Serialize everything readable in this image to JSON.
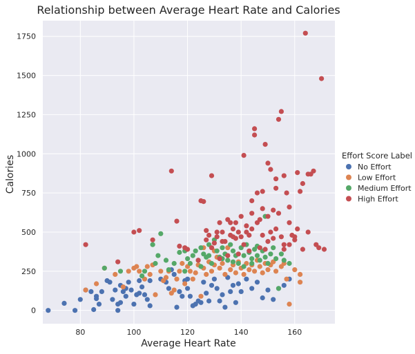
{
  "chart_data": {
    "type": "scatter",
    "title": "Relationship between Average Heart Rate and Calories",
    "xlabel": "Average Heart Rate",
    "ylabel": "Calories",
    "xlim": [
      66,
      175
    ],
    "ylim": [
      -85,
      1850
    ],
    "xticks": [
      80,
      100,
      120,
      140,
      160
    ],
    "yticks": [
      0,
      250,
      500,
      750,
      1000,
      1250,
      1500,
      1750
    ],
    "grid": true,
    "background": "#EAEAF2",
    "legend": {
      "title": "Effort Score Label",
      "position": "right"
    },
    "series": [
      {
        "name": "No Effort",
        "color": "#4C72B0",
        "points": [
          [
            68,
            0
          ],
          [
            74,
            45
          ],
          [
            78,
            0
          ],
          [
            80,
            70
          ],
          [
            82,
            130
          ],
          [
            84,
            120
          ],
          [
            85,
            5
          ],
          [
            86,
            90
          ],
          [
            86,
            75
          ],
          [
            87,
            40
          ],
          [
            88,
            120
          ],
          [
            90,
            190
          ],
          [
            91,
            180
          ],
          [
            92,
            70
          ],
          [
            93,
            130
          ],
          [
            94,
            40
          ],
          [
            94,
            0
          ],
          [
            95,
            50
          ],
          [
            95,
            160
          ],
          [
            96,
            120
          ],
          [
            97,
            140
          ],
          [
            97,
            90
          ],
          [
            98,
            180
          ],
          [
            99,
            130
          ],
          [
            100,
            40
          ],
          [
            101,
            100
          ],
          [
            102,
            190
          ],
          [
            102,
            110
          ],
          [
            103,
            150
          ],
          [
            104,
            100
          ],
          [
            105,
            70
          ],
          [
            106,
            190
          ],
          [
            106,
            30
          ],
          [
            110,
            200
          ],
          [
            112,
            180
          ],
          [
            113,
            140
          ],
          [
            114,
            260
          ],
          [
            115,
            230
          ],
          [
            116,
            20
          ],
          [
            117,
            120
          ],
          [
            118,
            90
          ],
          [
            119,
            190
          ],
          [
            120,
            200
          ],
          [
            120,
            140
          ],
          [
            121,
            90
          ],
          [
            122,
            30
          ],
          [
            123,
            40
          ],
          [
            124,
            60
          ],
          [
            125,
            50
          ],
          [
            126,
            180
          ],
          [
            127,
            110
          ],
          [
            128,
            60
          ],
          [
            129,
            160
          ],
          [
            130,
            200
          ],
          [
            131,
            140
          ],
          [
            132,
            60
          ],
          [
            133,
            100
          ],
          [
            134,
            20
          ],
          [
            135,
            210
          ],
          [
            136,
            120
          ],
          [
            137,
            160
          ],
          [
            138,
            50
          ],
          [
            139,
            170
          ],
          [
            140,
            120
          ],
          [
            142,
            200
          ],
          [
            144,
            140
          ],
          [
            146,
            180
          ],
          [
            148,
            80
          ],
          [
            150,
            130
          ],
          [
            152,
            70
          ],
          [
            154,
            140
          ],
          [
            156,
            160
          ],
          [
            158,
            200
          ]
        ]
      },
      {
        "name": "Low Effort",
        "color": "#DD8452",
        "points": [
          [
            82,
            130
          ],
          [
            86,
            170
          ],
          [
            89,
            270
          ],
          [
            93,
            230
          ],
          [
            96,
            150
          ],
          [
            98,
            250
          ],
          [
            100,
            270
          ],
          [
            101,
            280
          ],
          [
            102,
            250
          ],
          [
            104,
            200
          ],
          [
            105,
            280
          ],
          [
            106,
            230
          ],
          [
            107,
            290
          ],
          [
            108,
            100
          ],
          [
            110,
            250
          ],
          [
            111,
            190
          ],
          [
            112,
            210
          ],
          [
            113,
            250
          ],
          [
            114,
            110
          ],
          [
            115,
            130
          ],
          [
            116,
            200
          ],
          [
            117,
            250
          ],
          [
            118,
            300
          ],
          [
            119,
            170
          ],
          [
            120,
            280
          ],
          [
            121,
            250
          ],
          [
            122,
            200
          ],
          [
            123,
            240
          ],
          [
            124,
            290
          ],
          [
            125,
            90
          ],
          [
            126,
            270
          ],
          [
            127,
            230
          ],
          [
            128,
            310
          ],
          [
            129,
            250
          ],
          [
            130,
            290
          ],
          [
            131,
            340
          ],
          [
            132,
            270
          ],
          [
            133,
            300
          ],
          [
            134,
            230
          ],
          [
            135,
            320
          ],
          [
            136,
            260
          ],
          [
            137,
            290
          ],
          [
            138,
            240
          ],
          [
            139,
            310
          ],
          [
            140,
            270
          ],
          [
            141,
            230
          ],
          [
            142,
            300
          ],
          [
            143,
            260
          ],
          [
            144,
            290
          ],
          [
            145,
            250
          ],
          [
            146,
            320
          ],
          [
            147,
            280
          ],
          [
            148,
            240
          ],
          [
            149,
            300
          ],
          [
            150,
            260
          ],
          [
            151,
            290
          ],
          [
            152,
            310
          ],
          [
            153,
            250
          ],
          [
            155,
            280
          ],
          [
            156,
            300
          ],
          [
            157,
            200
          ],
          [
            158,
            40
          ],
          [
            160,
            260
          ],
          [
            162,
            230
          ],
          [
            162,
            180
          ],
          [
            126,
            400
          ],
          [
            130,
            380
          ],
          [
            135,
            400
          ]
        ]
      },
      {
        "name": "Medium Effort",
        "color": "#55A868",
        "points": [
          [
            89,
            270
          ],
          [
            95,
            250
          ],
          [
            103,
            220
          ],
          [
            104,
            250
          ],
          [
            107,
            420
          ],
          [
            108,
            300
          ],
          [
            109,
            350
          ],
          [
            110,
            490
          ],
          [
            112,
            320
          ],
          [
            113,
            260
          ],
          [
            115,
            300
          ],
          [
            117,
            370
          ],
          [
            119,
            250
          ],
          [
            120,
            330
          ],
          [
            121,
            300
          ],
          [
            122,
            350
          ],
          [
            123,
            380
          ],
          [
            124,
            320
          ],
          [
            125,
            400
          ],
          [
            126,
            360
          ],
          [
            127,
            340
          ],
          [
            128,
            420
          ],
          [
            129,
            300
          ],
          [
            130,
            450
          ],
          [
            131,
            380
          ],
          [
            132,
            340
          ],
          [
            133,
            400
          ],
          [
            134,
            360
          ],
          [
            135,
            320
          ],
          [
            136,
            420
          ],
          [
            137,
            380
          ],
          [
            138,
            350
          ],
          [
            139,
            300
          ],
          [
            140,
            400
          ],
          [
            141,
            350
          ],
          [
            142,
            420
          ],
          [
            143,
            370
          ],
          [
            144,
            330
          ],
          [
            145,
            390
          ],
          [
            146,
            350
          ],
          [
            147,
            320
          ],
          [
            148,
            380
          ],
          [
            149,
            340
          ],
          [
            150,
            300
          ],
          [
            151,
            360
          ],
          [
            152,
            400
          ],
          [
            153,
            330
          ],
          [
            154,
            140
          ],
          [
            155,
            360
          ],
          [
            156,
            320
          ],
          [
            158,
            300
          ],
          [
            149,
            600
          ],
          [
            137,
            310
          ],
          [
            141,
            280
          ],
          [
            133,
            330
          ],
          [
            128,
            350
          ],
          [
            144,
            300
          ],
          [
            146,
            410
          ],
          [
            119,
            380
          ],
          [
            125,
            280
          ]
        ]
      },
      {
        "name": "High Effort",
        "color": "#C44E52",
        "points": [
          [
            82,
            420
          ],
          [
            94,
            310
          ],
          [
            100,
            500
          ],
          [
            102,
            510
          ],
          [
            107,
            450
          ],
          [
            114,
            890
          ],
          [
            116,
            570
          ],
          [
            117,
            410
          ],
          [
            119,
            400
          ],
          [
            120,
            390
          ],
          [
            124,
            320
          ],
          [
            125,
            700
          ],
          [
            126,
            695
          ],
          [
            127,
            510
          ],
          [
            128,
            480
          ],
          [
            129,
            860
          ],
          [
            130,
            430
          ],
          [
            131,
            470
          ],
          [
            132,
            560
          ],
          [
            133,
            500
          ],
          [
            134,
            440
          ],
          [
            135,
            580
          ],
          [
            136,
            480
          ],
          [
            137,
            520
          ],
          [
            138,
            560
          ],
          [
            138,
            460
          ],
          [
            139,
            500
          ],
          [
            140,
            470
          ],
          [
            141,
            420
          ],
          [
            141,
            990
          ],
          [
            142,
            540
          ],
          [
            143,
            480
          ],
          [
            144,
            620
          ],
          [
            144,
            520
          ],
          [
            145,
            1160
          ],
          [
            145,
            1120
          ],
          [
            146,
            750
          ],
          [
            147,
            580
          ],
          [
            148,
            480
          ],
          [
            148,
            760
          ],
          [
            149,
            1060
          ],
          [
            150,
            940
          ],
          [
            150,
            600
          ],
          [
            151,
            500
          ],
          [
            151,
            900
          ],
          [
            152,
            460
          ],
          [
            153,
            840
          ],
          [
            153,
            780
          ],
          [
            154,
            1220
          ],
          [
            154,
            620
          ],
          [
            155,
            1270
          ],
          [
            156,
            420
          ],
          [
            156,
            860
          ],
          [
            157,
            750
          ],
          [
            158,
            560
          ],
          [
            158,
            420
          ],
          [
            159,
            480
          ],
          [
            160,
            470
          ],
          [
            161,
            880
          ],
          [
            162,
            760
          ],
          [
            163,
            390
          ],
          [
            164,
            1770
          ],
          [
            165,
            870
          ],
          [
            166,
            870
          ],
          [
            167,
            890
          ],
          [
            168,
            420
          ],
          [
            169,
            400
          ],
          [
            170,
            1480
          ],
          [
            171,
            390
          ],
          [
            160,
            450
          ],
          [
            155,
            470
          ],
          [
            147,
            400
          ],
          [
            143,
            380
          ],
          [
            139,
            360
          ],
          [
            135,
            350
          ],
          [
            132,
            330
          ],
          [
            150,
            440
          ],
          [
            153,
            520
          ],
          [
            146,
            560
          ],
          [
            142,
            500
          ],
          [
            137,
            470
          ],
          [
            133,
            440
          ],
          [
            129,
            400
          ],
          [
            163,
            810
          ],
          [
            165,
            500
          ],
          [
            158,
            660
          ],
          [
            152,
            640
          ],
          [
            148,
            650
          ],
          [
            144,
            700
          ],
          [
            140,
            600
          ],
          [
            136,
            560
          ],
          [
            131,
            500
          ],
          [
            127,
            450
          ],
          [
            149,
            390
          ],
          [
            156,
            390
          ],
          [
            161,
            520
          ]
        ]
      }
    ]
  }
}
